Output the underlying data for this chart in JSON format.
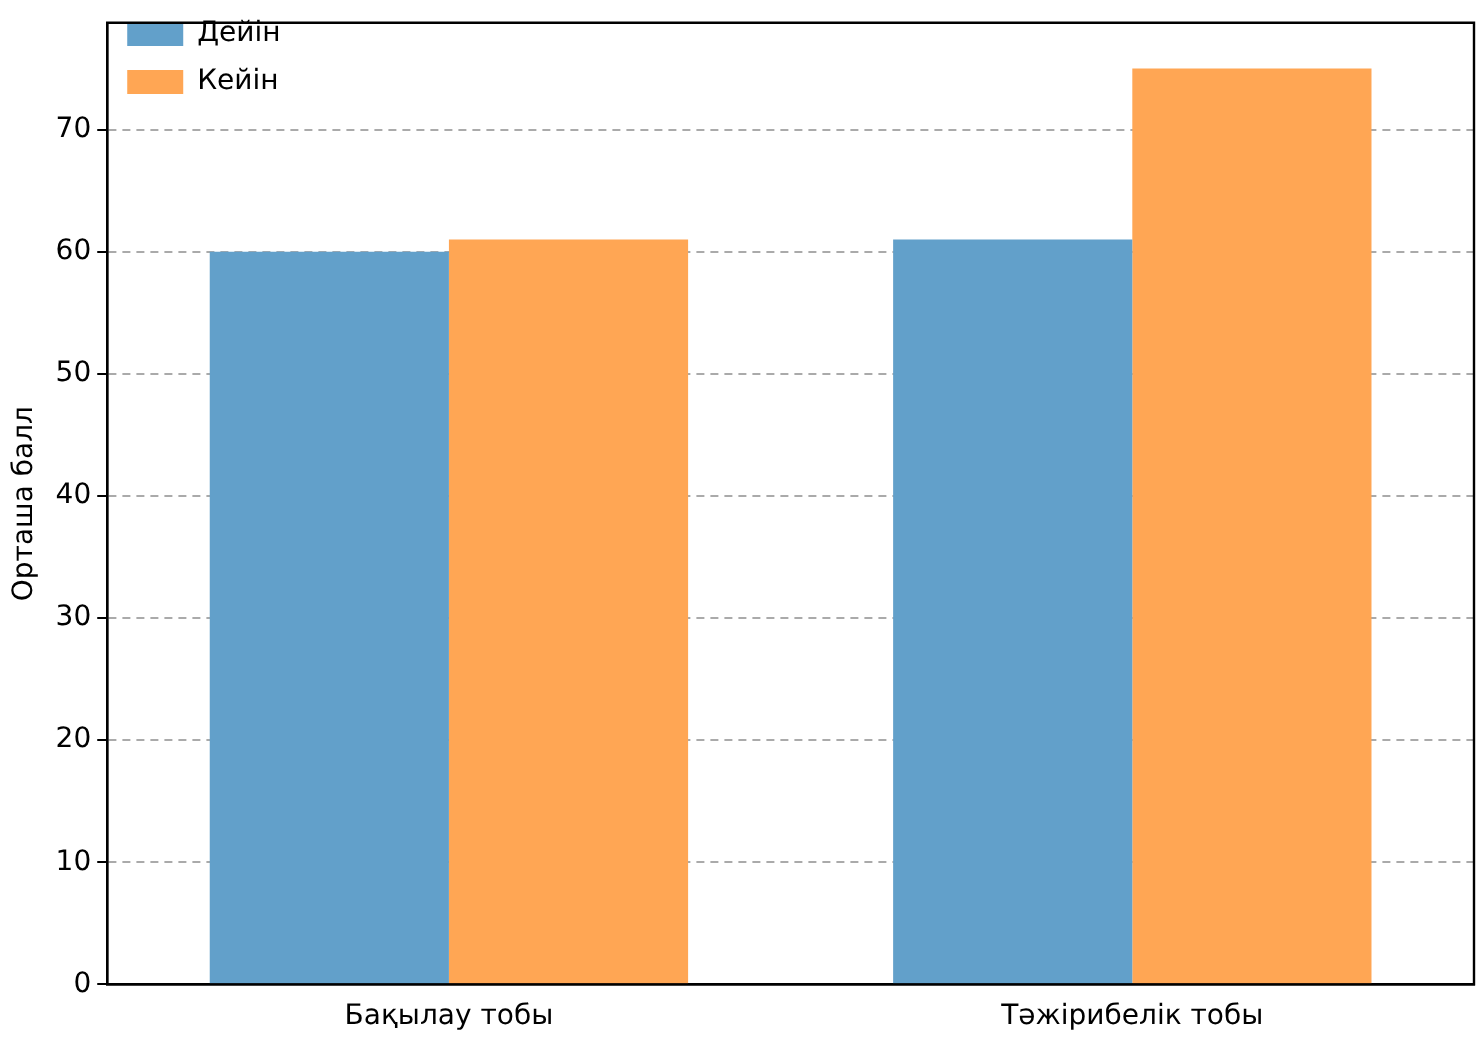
{
  "chart_data": {
    "type": "bar",
    "ylabel": "Орташа балл",
    "categories": [
      "Бақылау тобы",
      "Тәжірибелік тобы"
    ],
    "series": [
      {
        "name": "Дейін",
        "color": "#62a0ca",
        "values": [
          60,
          61
        ]
      },
      {
        "name": "Кейін",
        "color": "#ffa654",
        "values": [
          61,
          75
        ]
      }
    ],
    "ylim": [
      0,
      78.75
    ],
    "yticks": [
      0,
      10,
      20,
      30,
      40,
      50,
      60,
      70
    ],
    "grid": "y",
    "line_style": "dashed",
    "legend": "top left"
  }
}
